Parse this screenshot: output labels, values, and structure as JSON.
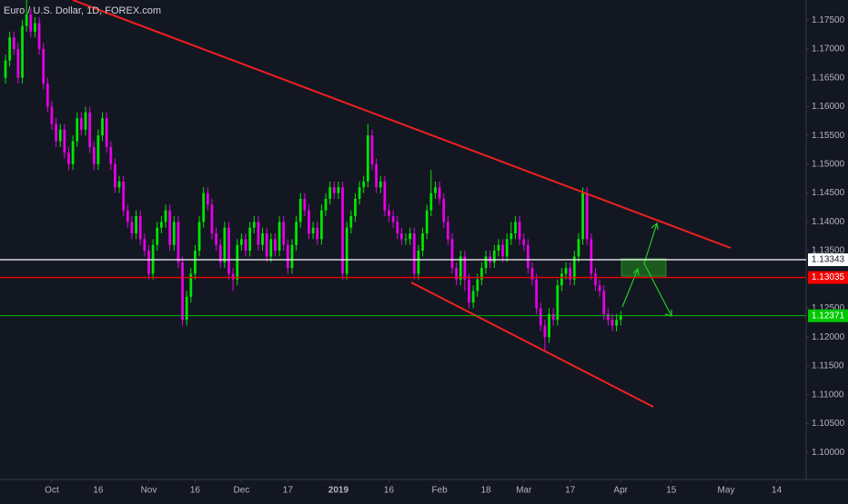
{
  "chart_data": {
    "type": "candlestick",
    "title": "Euro / U.S. Dollar, 1D, FOREX.com",
    "x": [
      -11,
      -10,
      -9,
      -8,
      -7,
      -6,
      -5,
      -4,
      -3,
      -2,
      -1,
      0,
      1,
      2,
      3,
      4,
      5,
      6,
      7,
      8,
      9,
      10,
      11,
      12,
      13,
      14,
      15,
      16,
      17,
      18,
      19,
      20,
      21,
      22,
      23,
      24,
      25,
      26,
      27,
      28,
      29,
      30,
      31,
      32,
      33,
      34,
      35,
      36,
      37,
      38,
      39,
      40,
      41,
      42,
      43,
      44,
      45,
      46,
      47,
      48,
      49,
      50,
      51,
      52,
      53,
      54,
      55,
      56,
      57,
      58,
      59,
      60,
      61,
      62,
      63,
      64,
      65,
      66,
      67,
      68,
      69,
      70,
      71,
      72,
      73,
      74,
      75,
      76,
      77,
      78,
      79,
      80,
      81,
      82,
      83,
      84,
      85,
      86,
      87,
      88,
      89,
      90,
      91,
      92,
      93,
      94,
      95,
      96,
      97,
      98,
      99,
      100,
      101,
      102,
      103,
      104,
      105,
      106,
      107,
      108,
      109,
      110,
      111,
      112,
      113,
      114,
      115,
      116,
      117,
      118,
      119,
      120,
      121,
      122,
      123,
      124,
      125,
      126,
      127,
      128,
      129,
      130,
      131,
      132,
      133,
      134,
      135
    ],
    "open": [
      1.165,
      1.168,
      1.172,
      1.17,
      1.165,
      1.174,
      1.176,
      1.173,
      1.1745,
      1.17,
      1.164,
      1.16,
      1.157,
      1.154,
      1.156,
      1.152,
      1.15,
      1.154,
      1.158,
      1.156,
      1.159,
      1.153,
      1.15,
      1.155,
      1.158,
      1.153,
      1.15,
      1.146,
      1.147,
      1.142,
      1.14,
      1.138,
      1.141,
      1.137,
      1.135,
      1.131,
      1.136,
      1.139,
      1.14,
      1.142,
      1.136,
      1.14,
      1.133,
      1.123,
      1.127,
      1.131,
      1.135,
      1.14,
      1.145,
      1.143,
      1.138,
      1.136,
      1.133,
      1.139,
      1.131,
      1.13,
      1.136,
      1.137,
      1.135,
      1.139,
      1.14,
      1.136,
      1.138,
      1.134,
      1.137,
      1.135,
      1.14,
      1.136,
      1.132,
      1.136,
      1.14,
      1.144,
      1.142,
      1.138,
      1.139,
      1.137,
      1.142,
      1.144,
      1.146,
      1.145,
      1.146,
      1.131,
      1.139,
      1.141,
      1.144,
      1.146,
      1.147,
      1.155,
      1.15,
      1.146,
      1.147,
      1.142,
      1.141,
      1.14,
      1.138,
      1.137,
      1.137,
      1.138,
      1.131,
      1.135,
      1.138,
      1.142,
      1.145,
      1.146,
      1.144,
      1.14,
      1.137,
      1.132,
      1.13,
      1.134,
      1.13,
      1.126,
      1.128,
      1.13,
      1.132,
      1.134,
      1.133,
      1.135,
      1.136,
      1.134,
      1.137,
      1.138,
      1.14,
      1.137,
      1.136,
      1.132,
      1.13,
      1.125,
      1.122,
      1.12,
      1.124,
      1.123,
      1.129,
      1.131,
      1.132,
      1.13,
      1.134,
      1.137,
      1.145,
      1.137,
      1.131,
      1.129,
      1.128,
      1.124,
      1.123,
      1.122,
      1.123
    ],
    "high": [
      1.169,
      1.173,
      1.173,
      1.171,
      1.175,
      1.1785,
      1.177,
      1.1755,
      1.1755,
      1.171,
      1.165,
      1.161,
      1.158,
      1.157,
      1.157,
      1.153,
      1.155,
      1.159,
      1.159,
      1.16,
      1.16,
      1.154,
      1.156,
      1.159,
      1.159,
      1.154,
      1.151,
      1.148,
      1.148,
      1.143,
      1.141,
      1.142,
      1.142,
      1.138,
      1.136,
      1.137,
      1.14,
      1.141,
      1.143,
      1.143,
      1.141,
      1.141,
      1.134,
      1.128,
      1.132,
      1.136,
      1.141,
      1.146,
      1.146,
      1.144,
      1.139,
      1.137,
      1.14,
      1.14,
      1.132,
      1.137,
      1.138,
      1.138,
      1.14,
      1.141,
      1.141,
      1.139,
      1.139,
      1.138,
      1.138,
      1.141,
      1.141,
      1.137,
      1.137,
      1.141,
      1.145,
      1.145,
      1.143,
      1.14,
      1.14,
      1.143,
      1.145,
      1.147,
      1.147,
      1.147,
      1.147,
      1.14,
      1.142,
      1.145,
      1.147,
      1.148,
      1.157,
      1.156,
      1.151,
      1.148,
      1.148,
      1.143,
      1.142,
      1.141,
      1.139,
      1.138,
      1.139,
      1.139,
      1.136,
      1.139,
      1.143,
      1.149,
      1.147,
      1.147,
      1.145,
      1.141,
      1.138,
      1.133,
      1.135,
      1.135,
      1.131,
      1.129,
      1.131,
      1.133,
      1.135,
      1.135,
      1.136,
      1.137,
      1.137,
      1.138,
      1.14,
      1.141,
      1.141,
      1.138,
      1.137,
      1.133,
      1.131,
      1.126,
      1.123,
      1.125,
      1.125,
      1.13,
      1.132,
      1.133,
      1.133,
      1.135,
      1.138,
      1.146,
      1.146,
      1.138,
      1.132,
      1.13,
      1.129,
      1.125,
      1.124,
      1.124,
      1.1245
    ],
    "low": [
      1.164,
      1.167,
      1.169,
      1.164,
      1.164,
      1.173,
      1.172,
      1.172,
      1.169,
      1.163,
      1.159,
      1.156,
      1.153,
      1.153,
      1.151,
      1.149,
      1.149,
      1.153,
      1.155,
      1.155,
      1.152,
      1.149,
      1.149,
      1.154,
      1.152,
      1.149,
      1.145,
      1.145,
      1.141,
      1.139,
      1.137,
      1.137,
      1.136,
      1.134,
      1.13,
      1.13,
      1.135,
      1.138,
      1.139,
      1.135,
      1.135,
      1.132,
      1.122,
      1.122,
      1.126,
      1.13,
      1.134,
      1.139,
      1.142,
      1.137,
      1.135,
      1.132,
      1.132,
      1.13,
      1.128,
      1.129,
      1.135,
      1.134,
      1.134,
      1.138,
      1.135,
      1.135,
      1.133,
      1.133,
      1.134,
      1.134,
      1.135,
      1.131,
      1.131,
      1.135,
      1.139,
      1.141,
      1.137,
      1.137,
      1.136,
      1.136,
      1.141,
      1.143,
      1.144,
      1.144,
      1.13,
      1.13,
      1.138,
      1.14,
      1.143,
      1.145,
      1.146,
      1.149,
      1.145,
      1.145,
      1.141,
      1.14,
      1.139,
      1.137,
      1.136,
      1.136,
      1.136,
      1.13,
      1.13,
      1.134,
      1.137,
      1.141,
      1.144,
      1.143,
      1.139,
      1.136,
      1.131,
      1.129,
      1.129,
      1.128,
      1.125,
      1.125,
      1.127,
      1.129,
      1.131,
      1.132,
      1.132,
      1.134,
      1.133,
      1.133,
      1.136,
      1.137,
      1.136,
      1.135,
      1.131,
      1.129,
      1.124,
      1.121,
      1.1176,
      1.119,
      1.122,
      1.122,
      1.128,
      1.13,
      1.129,
      1.129,
      1.133,
      1.136,
      1.136,
      1.13,
      1.128,
      1.127,
      1.123,
      1.122,
      1.121,
      1.121,
      1.122
    ],
    "close": [
      1.168,
      1.172,
      1.17,
      1.165,
      1.174,
      1.176,
      1.173,
      1.1745,
      1.17,
      1.164,
      1.16,
      1.157,
      1.154,
      1.156,
      1.152,
      1.15,
      1.154,
      1.158,
      1.156,
      1.159,
      1.153,
      1.15,
      1.155,
      1.158,
      1.153,
      1.15,
      1.146,
      1.147,
      1.142,
      1.14,
      1.138,
      1.141,
      1.137,
      1.135,
      1.131,
      1.136,
      1.139,
      1.14,
      1.142,
      1.136,
      1.14,
      1.133,
      1.123,
      1.127,
      1.131,
      1.135,
      1.14,
      1.145,
      1.143,
      1.138,
      1.136,
      1.133,
      1.139,
      1.131,
      1.13,
      1.136,
      1.137,
      1.135,
      1.139,
      1.14,
      1.136,
      1.138,
      1.134,
      1.137,
      1.135,
      1.14,
      1.136,
      1.132,
      1.136,
      1.14,
      1.144,
      1.142,
      1.138,
      1.139,
      1.137,
      1.142,
      1.144,
      1.146,
      1.145,
      1.146,
      1.131,
      1.139,
      1.141,
      1.144,
      1.146,
      1.147,
      1.155,
      1.15,
      1.146,
      1.147,
      1.142,
      1.141,
      1.14,
      1.138,
      1.137,
      1.137,
      1.138,
      1.131,
      1.135,
      1.138,
      1.142,
      1.145,
      1.146,
      1.144,
      1.14,
      1.137,
      1.132,
      1.13,
      1.134,
      1.13,
      1.126,
      1.128,
      1.13,
      1.132,
      1.134,
      1.133,
      1.135,
      1.136,
      1.134,
      1.137,
      1.138,
      1.14,
      1.137,
      1.136,
      1.132,
      1.13,
      1.125,
      1.122,
      1.12,
      1.124,
      1.123,
      1.129,
      1.131,
      1.132,
      1.13,
      1.134,
      1.137,
      1.145,
      1.137,
      1.131,
      1.129,
      1.128,
      1.124,
      1.123,
      1.122,
      1.123,
      1.1237
    ],
    "up_color": "#00e600",
    "down_color": "#e600e6",
    "xlim": [
      -12.3,
      179
    ],
    "ylim": [
      1.0953,
      1.1785
    ],
    "xticks": [
      {
        "value": 0,
        "label": "Oct"
      },
      {
        "value": 11,
        "label": "16"
      },
      {
        "value": 23,
        "label": "Nov"
      },
      {
        "value": 34,
        "label": "16"
      },
      {
        "value": 45,
        "label": "Dec"
      },
      {
        "value": 56,
        "label": "17"
      },
      {
        "value": 68,
        "label": "2019"
      },
      {
        "value": 80,
        "label": "16"
      },
      {
        "value": 92,
        "label": "Feb"
      },
      {
        "value": 103,
        "label": "18"
      },
      {
        "value": 112,
        "label": "Mar"
      },
      {
        "value": 123,
        "label": "17"
      },
      {
        "value": 135,
        "label": "Apr"
      },
      {
        "value": 147,
        "label": "15"
      },
      {
        "value": 160,
        "label": "May"
      },
      {
        "value": 172,
        "label": "14"
      }
    ],
    "yticks": [
      {
        "value": 1.1,
        "label": "1.10000"
      },
      {
        "value": 1.105,
        "label": "1.10500"
      },
      {
        "value": 1.11,
        "label": "1.11000"
      },
      {
        "value": 1.115,
        "label": "1.11500"
      },
      {
        "value": 1.12,
        "label": "1.12000"
      },
      {
        "value": 1.125,
        "label": "1.12500"
      },
      {
        "value": 1.13,
        "label": "1.13000"
      },
      {
        "value": 1.135,
        "label": "1.13500"
      },
      {
        "value": 1.14,
        "label": "1.14000"
      },
      {
        "value": 1.145,
        "label": "1.14500"
      },
      {
        "value": 1.15,
        "label": "1.15000"
      },
      {
        "value": 1.155,
        "label": "1.15500"
      },
      {
        "value": 1.16,
        "label": "1.16000"
      },
      {
        "value": 1.165,
        "label": "1.16500"
      },
      {
        "value": 1.17,
        "label": "1.17000"
      },
      {
        "value": 1.175,
        "label": "1.17500"
      }
    ],
    "levels": [
      {
        "value": 1.13343,
        "color": "#ffffff",
        "text_color": "#131722"
      },
      {
        "value": 1.13035,
        "color": "#f00000",
        "text_color": "#ffffff"
      },
      {
        "value": 1.12371,
        "color": "#00c800",
        "text_color": "#ffffff"
      }
    ]
  }
}
